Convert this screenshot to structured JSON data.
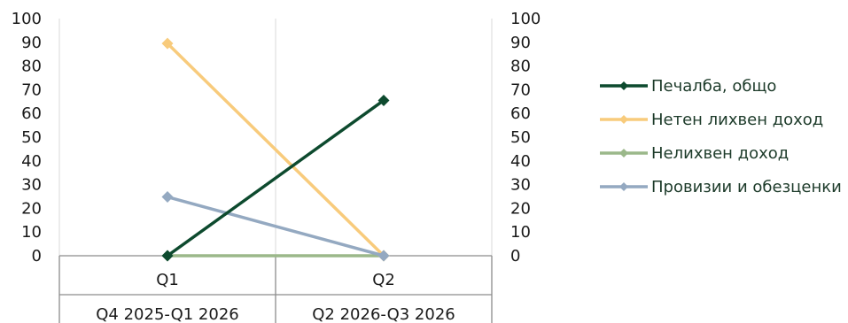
{
  "chart_data": {
    "type": "line",
    "title": "",
    "xlabel": "",
    "ylabel": "",
    "ylim": [
      0,
      100
    ],
    "y2lim": [
      0,
      100
    ],
    "yticks": [
      0,
      10,
      20,
      30,
      40,
      50,
      60,
      70,
      80,
      90,
      100
    ],
    "grid": "vertical",
    "legend": "right",
    "categories": [
      "Q1",
      "Q2"
    ],
    "category_groups": [
      "Q4 2025-Q1 2026",
      "Q2 2026-Q3 2026"
    ],
    "series": [
      {
        "name": "Печалба, общо",
        "color": "#0d4a2e",
        "values": [
          0,
          65.5
        ]
      },
      {
        "name": "Нетен лихвен доход",
        "color": "#f8cb7c",
        "values": [
          89.5,
          0
        ]
      },
      {
        "name": "Нелихвен доход",
        "color": "#9bb88a",
        "values": [
          0,
          0
        ]
      },
      {
        "name": "Провизии и обезценки",
        "color": "#94a9c1",
        "values": [
          24.8,
          0
        ]
      }
    ]
  }
}
